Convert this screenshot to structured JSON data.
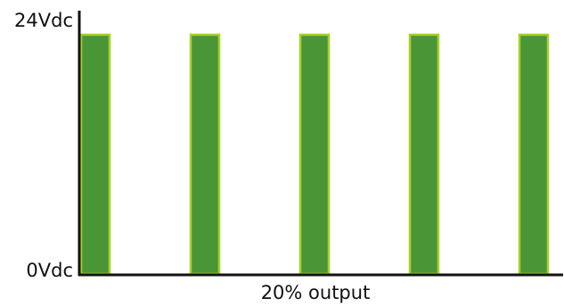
{
  "chart_data": {
    "type": "bar",
    "title": "",
    "xlabel": "20% output",
    "ylabel": "",
    "y_tick_labels": [
      "24Vdc",
      "0Vdc"
    ],
    "ylim": [
      0,
      24
    ],
    "pulse_count": 5,
    "duty_cycle": 0.2,
    "values": [
      24,
      24,
      24,
      24,
      24
    ],
    "grid": false,
    "legend": "none",
    "colors": {
      "bar_fill": "#4a9637",
      "bar_outline": "#a8d128",
      "axis": "#111111"
    }
  }
}
